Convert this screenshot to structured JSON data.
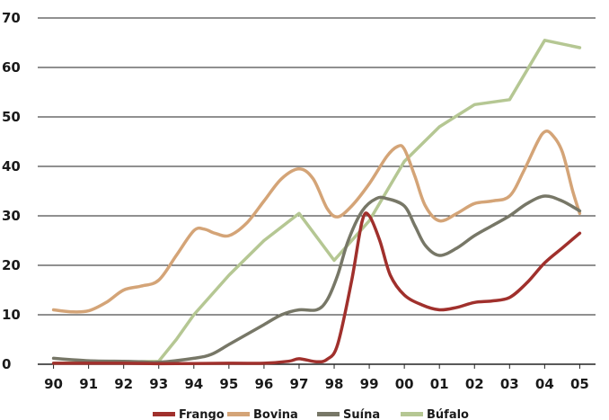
{
  "chart_data": {
    "type": "line",
    "title": "",
    "xlabel": "",
    "ylabel": "",
    "categories": [
      "90",
      "91",
      "92",
      "93",
      "94",
      "95",
      "96",
      "97",
      "98",
      "99",
      "00",
      "01",
      "02",
      "03",
      "04",
      "05"
    ],
    "x": [
      1990,
      1990.5,
      1991,
      1991.5,
      1992,
      1992.5,
      1993,
      1993.5,
      1994,
      1994.5,
      1995,
      1995.5,
      1996,
      1996.5,
      1997,
      1997.5,
      1998,
      1998.5,
      1999,
      1999.5,
      2000,
      2000.5,
      2001,
      2001.5,
      2002,
      2002.5,
      2003,
      2003.5,
      2004,
      2004.5,
      2005
    ],
    "ylim": [
      0,
      70
    ],
    "yticks": [
      "0",
      "10",
      "20",
      "30",
      "40",
      "50",
      "60",
      "70"
    ],
    "grid": true,
    "legend_position": "bottom",
    "series": [
      {
        "name": "Frango",
        "color": "#a0302c",
        "points": [
          [
            1990,
            0.2
          ],
          [
            1992,
            0.2
          ],
          [
            1993,
            0.1
          ],
          [
            1995,
            0.2
          ],
          [
            1996,
            0.2
          ],
          [
            1996.7,
            0.6
          ],
          [
            1997,
            1.1
          ],
          [
            1997.5,
            0.5
          ],
          [
            1997.8,
            1.0
          ],
          [
            1998.1,
            4
          ],
          [
            1998.5,
            17
          ],
          [
            1998.8,
            29
          ],
          [
            1999,
            30
          ],
          [
            1999.3,
            25
          ],
          [
            1999.6,
            18
          ],
          [
            2000,
            14
          ],
          [
            2000.5,
            12
          ],
          [
            2001,
            11
          ],
          [
            2001.5,
            11.5
          ],
          [
            2002,
            12.5
          ],
          [
            2002.5,
            12.8
          ],
          [
            2003,
            13.5
          ],
          [
            2003.5,
            16.5
          ],
          [
            2004,
            20.5
          ],
          [
            2004.5,
            23.5
          ],
          [
            2005,
            26.5
          ]
        ]
      },
      {
        "name": "Bovina",
        "color": "#d4a477",
        "points": [
          [
            1990,
            11
          ],
          [
            1990.5,
            10.6
          ],
          [
            1991,
            10.8
          ],
          [
            1991.5,
            12.5
          ],
          [
            1992,
            15
          ],
          [
            1992.5,
            15.8
          ],
          [
            1993,
            17
          ],
          [
            1993.5,
            22
          ],
          [
            1994,
            27
          ],
          [
            1994.3,
            27.3
          ],
          [
            1994.6,
            26.5
          ],
          [
            1995,
            26
          ],
          [
            1995.5,
            28.5
          ],
          [
            1996,
            33
          ],
          [
            1996.5,
            37.5
          ],
          [
            1997,
            39.5
          ],
          [
            1997.4,
            37.5
          ],
          [
            1997.8,
            31.5
          ],
          [
            1998.1,
            29.8
          ],
          [
            1998.5,
            32
          ],
          [
            1999,
            36.5
          ],
          [
            1999.5,
            42
          ],
          [
            1999.8,
            44
          ],
          [
            2000,
            43.5
          ],
          [
            2000.3,
            38
          ],
          [
            2000.6,
            32
          ],
          [
            2001,
            29
          ],
          [
            2001.5,
            30.5
          ],
          [
            2002,
            32.5
          ],
          [
            2002.5,
            33
          ],
          [
            2003,
            34
          ],
          [
            2003.4,
            39
          ],
          [
            2003.8,
            45
          ],
          [
            2004,
            47
          ],
          [
            2004.2,
            46.5
          ],
          [
            2004.5,
            43
          ],
          [
            2004.8,
            35
          ],
          [
            2005,
            30.5
          ]
        ]
      },
      {
        "name": "Suína",
        "color": "#777767",
        "points": [
          [
            1990,
            1.2
          ],
          [
            1991,
            0.7
          ],
          [
            1992,
            0.6
          ],
          [
            1992.5,
            0.5
          ],
          [
            1993,
            0.4
          ],
          [
            1994,
            1.2
          ],
          [
            1994.5,
            2
          ],
          [
            1995,
            4
          ],
          [
            1995.5,
            6
          ],
          [
            1996,
            8
          ],
          [
            1996.5,
            10
          ],
          [
            1997,
            11
          ],
          [
            1997.5,
            11
          ],
          [
            1997.8,
            13
          ],
          [
            1998.1,
            18
          ],
          [
            1998.4,
            25
          ],
          [
            1998.8,
            31
          ],
          [
            1999.2,
            33.5
          ],
          [
            1999.5,
            33.5
          ],
          [
            2000,
            32
          ],
          [
            2000.3,
            28
          ],
          [
            2000.6,
            24
          ],
          [
            2001,
            22
          ],
          [
            2001.5,
            23.5
          ],
          [
            2002,
            26
          ],
          [
            2002.5,
            28
          ],
          [
            2003,
            30
          ],
          [
            2003.5,
            32.5
          ],
          [
            2004,
            34
          ],
          [
            2004.5,
            33
          ],
          [
            2005,
            31
          ]
        ]
      },
      {
        "name": "Búfalo",
        "color": "#b5c793",
        "points": [
          [
            1990,
            0.2
          ],
          [
            1993,
            0.6
          ],
          [
            1993.5,
            5
          ],
          [
            1994,
            10
          ],
          [
            1995,
            18
          ],
          [
            1996,
            25
          ],
          [
            1997,
            30.5
          ],
          [
            1998,
            21
          ],
          [
            1999,
            29
          ],
          [
            2000,
            41
          ],
          [
            2001,
            48
          ],
          [
            2002,
            52.5
          ],
          [
            2003,
            53.5
          ],
          [
            2004,
            65.5
          ],
          [
            2005,
            64
          ]
        ]
      }
    ]
  }
}
